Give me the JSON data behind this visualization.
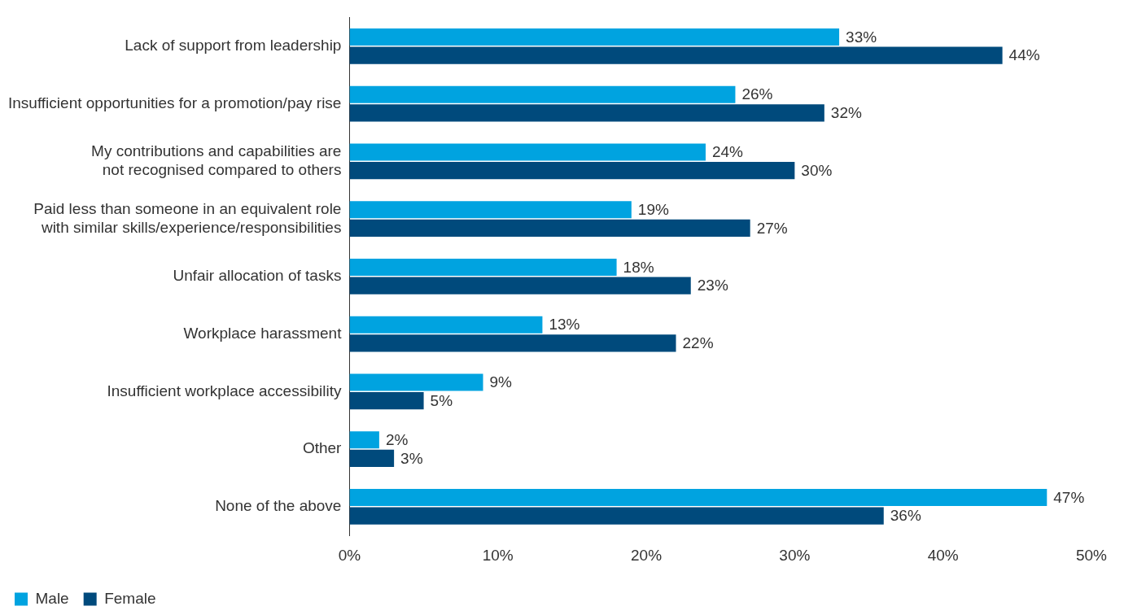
{
  "chart_data": {
    "type": "bar",
    "orientation": "horizontal",
    "categories": [
      "Lack of support from leadership",
      "Insufficient opportunities for a promotion/pay rise",
      "My contributions and capabilities are not recognised compared to others",
      "Paid less than someone in an equivalent role with similar skills/experience/responsibilities",
      "Unfair allocation of tasks",
      "Workplace harassment",
      "Insufficient workplace accessibility",
      "Other",
      "None of the above"
    ],
    "series": [
      {
        "name": "Male",
        "color": "#00a3e0",
        "values": [
          33,
          26,
          24,
          19,
          18,
          13,
          9,
          2,
          47
        ],
        "value_labels": [
          "33%",
          "26%",
          "24%",
          "19%",
          "18%",
          "13%",
          "9%",
          "2%",
          "47%"
        ]
      },
      {
        "name": "Female",
        "color": "#004a7c",
        "values": [
          44,
          32,
          30,
          27,
          23,
          22,
          5,
          3,
          36
        ],
        "value_labels": [
          "44%",
          "32%",
          "30%",
          "27%",
          "23%",
          "22%",
          "5%",
          "3%",
          "36%"
        ]
      }
    ],
    "xlim": [
      0,
      50
    ],
    "xticks": [
      {
        "value": 0,
        "label": "0%"
      },
      {
        "value": 10,
        "label": "10%"
      },
      {
        "value": 20,
        "label": "20%"
      },
      {
        "value": 30,
        "label": "30%"
      },
      {
        "value": 40,
        "label": "40%"
      },
      {
        "value": 50,
        "label": "50%"
      }
    ],
    "grid": false,
    "legend": "bottom"
  }
}
